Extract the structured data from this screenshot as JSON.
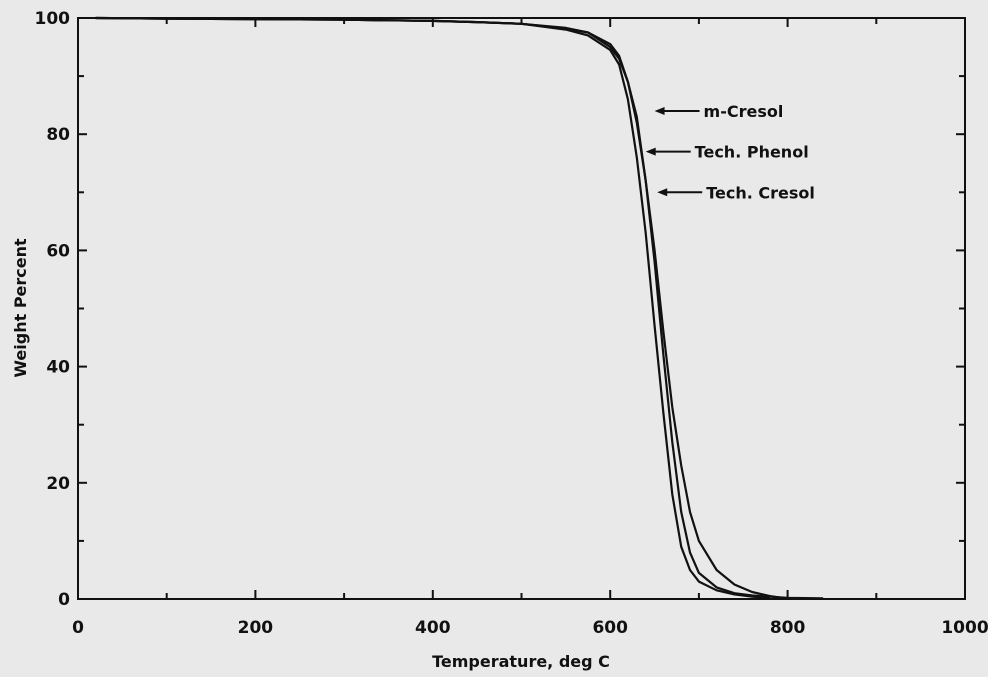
{
  "chart_data": {
    "type": "line",
    "title": "",
    "xlabel": "Temperature, deg C",
    "ylabel": "Weight Percent",
    "xlim": [
      0,
      1000
    ],
    "ylim": [
      0,
      100
    ],
    "x_ticks": [
      0,
      200,
      400,
      600,
      800,
      1000
    ],
    "y_ticks": [
      0,
      20,
      40,
      60,
      80,
      100
    ],
    "x_tick_labels": [
      "0",
      "200",
      "400",
      "600",
      "800",
      "1000"
    ],
    "y_tick_labels": [
      "0",
      "20",
      "40",
      "60",
      "80",
      "100"
    ],
    "grid": false,
    "legend": "none",
    "line_color": "#111111",
    "series": [
      {
        "name": "m-Cresol",
        "x": [
          20,
          100,
          200,
          300,
          400,
          450,
          500,
          550,
          575,
          600,
          610,
          620,
          630,
          640,
          650,
          660,
          670,
          680,
          690,
          700,
          720,
          740,
          760,
          780,
          790
        ],
        "y": [
          100,
          99.9,
          99.8,
          99.7,
          99.5,
          99.3,
          99.0,
          98.2,
          97.5,
          95.5,
          93.5,
          89.0,
          82.0,
          72.0,
          60.0,
          46.0,
          33.0,
          23.0,
          15.0,
          10.0,
          5.0,
          2.5,
          1.2,
          0.5,
          0.3
        ]
      },
      {
        "name": "Tech. Phenol",
        "x": [
          20,
          100,
          200,
          300,
          400,
          450,
          500,
          550,
          575,
          600,
          610,
          620,
          630,
          640,
          650,
          660,
          670,
          680,
          690,
          700,
          720,
          740,
          760,
          780
        ],
        "y": [
          100,
          99.9,
          99.8,
          99.7,
          99.5,
          99.3,
          99.0,
          98.0,
          97.0,
          94.5,
          92.0,
          86.0,
          76.0,
          63.0,
          47.0,
          32.0,
          18.0,
          9.0,
          5.0,
          3.0,
          1.5,
          0.8,
          0.4,
          0.2
        ]
      },
      {
        "name": "Tech. Cresol",
        "x": [
          20,
          100,
          200,
          300,
          400,
          450,
          500,
          550,
          575,
          600,
          610,
          620,
          630,
          640,
          650,
          660,
          670,
          680,
          690,
          700,
          720,
          740,
          760,
          780,
          800,
          840
        ],
        "y": [
          100,
          99.9,
          99.8,
          99.7,
          99.5,
          99.3,
          99.0,
          98.3,
          97.5,
          95.0,
          93.0,
          89.0,
          83.0,
          72.0,
          58.0,
          42.0,
          27.0,
          15.0,
          8.0,
          4.5,
          2.0,
          1.0,
          0.6,
          0.4,
          0.2,
          0.1
        ]
      }
    ],
    "annotations": [
      {
        "text": "m-Cresol",
        "x": 650,
        "y": 84
      },
      {
        "text": "Tech. Phenol",
        "x": 640,
        "y": 77
      },
      {
        "text": "Tech. Cresol",
        "x": 653,
        "y": 70
      }
    ]
  }
}
